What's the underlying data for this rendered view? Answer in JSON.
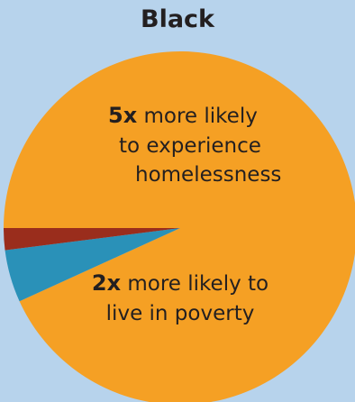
{
  "chart_data": {
    "type": "pie",
    "title": "Black",
    "slices": [
      {
        "value": 93.2,
        "color": "#f5a024"
      },
      {
        "value": 4.8,
        "color": "#2a91b8"
      },
      {
        "value": 2.0,
        "color": "#9a2d1c"
      }
    ],
    "annotations": {
      "homelessness": {
        "bold": "5x",
        "line1": " more likely",
        "line2": "to experience",
        "line3": "homelessness"
      },
      "poverty": {
        "bold": "2x",
        "line1": " more likely to",
        "line2": "live in poverty"
      }
    }
  }
}
